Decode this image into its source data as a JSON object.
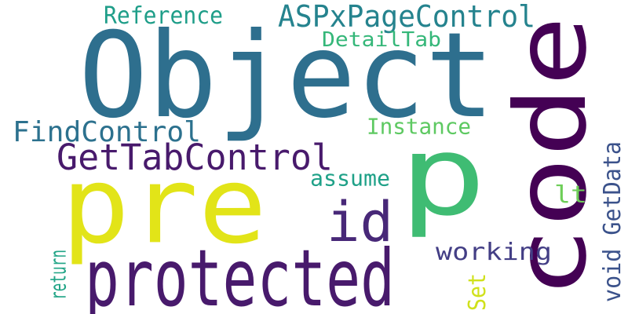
{
  "words": [
    {
      "text": "Object",
      "color": "#2e6f8e",
      "vertical": false
    },
    {
      "text": "code",
      "color": "#440154",
      "vertical": true
    },
    {
      "text": "p",
      "color": "#3fbc73",
      "vertical": false
    },
    {
      "text": "pre",
      "color": "#e2e418",
      "vertical": false
    },
    {
      "text": "protected",
      "color": "#481a6c",
      "vertical": false
    },
    {
      "text": "id",
      "color": "#482878",
      "vertical": false
    },
    {
      "text": "GetTabControl",
      "color": "#481a6c",
      "vertical": false
    },
    {
      "text": "ASPxPageControl",
      "color": "#25838e",
      "vertical": false
    },
    {
      "text": "FindControl",
      "color": "#2c718e",
      "vertical": false
    },
    {
      "text": "Reference",
      "color": "#1f9e89",
      "vertical": false
    },
    {
      "text": "DetailTab",
      "color": "#35b779",
      "vertical": false
    },
    {
      "text": "Instance",
      "color": "#5ec962",
      "vertical": false
    },
    {
      "text": "assume",
      "color": "#1fa188",
      "vertical": false
    },
    {
      "text": "lt",
      "color": "#6ece58",
      "vertical": false
    },
    {
      "text": "working",
      "color": "#433e85",
      "vertical": false
    },
    {
      "text": "return",
      "color": "#20a486",
      "vertical": true
    },
    {
      "text": "Set",
      "color": "#d0e11c",
      "vertical": true
    },
    {
      "text": "void GetData",
      "color": "#3b528b",
      "vertical": true
    }
  ]
}
